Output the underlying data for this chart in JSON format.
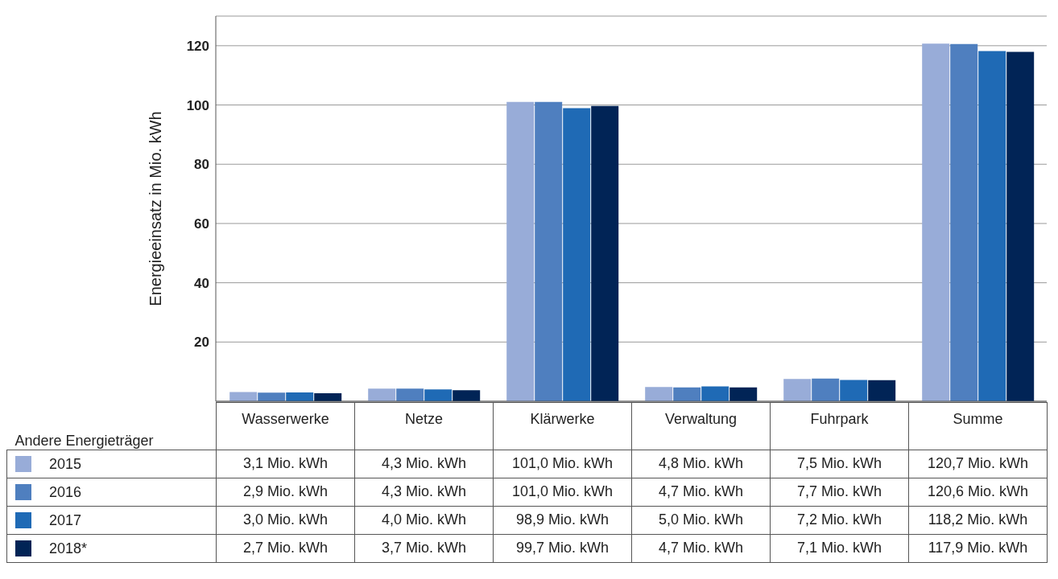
{
  "chart_data": {
    "type": "bar",
    "ylabel": "Energieeinsatz in Mio. kWh",
    "legend_title": "Andere Energieträger",
    "categories": [
      "Wasserwerke",
      "Netze",
      "Klärwerke",
      "Verwaltung",
      "Fuhrpark",
      "Summe"
    ],
    "series": [
      {
        "name": "2015",
        "color": "#98acd8",
        "values": [
          3.1,
          4.3,
          101.0,
          4.8,
          7.5,
          120.7
        ],
        "value_labels": [
          "3,1 Mio. kWh",
          "4,3 Mio. kWh",
          "101,0 Mio. kWh",
          "4,8 Mio. kWh",
          "7,5 Mio. kWh",
          "120,7 Mio. kWh"
        ]
      },
      {
        "name": "2016",
        "color": "#4f7fbf",
        "values": [
          2.9,
          4.3,
          101.0,
          4.7,
          7.7,
          120.6
        ],
        "value_labels": [
          "2,9 Mio. kWh",
          "4,3 Mio. kWh",
          "101,0 Mio. kWh",
          "4,7 Mio. kWh",
          "7,7 Mio. kWh",
          "120,6 Mio. kWh"
        ]
      },
      {
        "name": "2017",
        "color": "#1f6ab5",
        "values": [
          3.0,
          4.0,
          98.9,
          5.0,
          7.2,
          118.2
        ],
        "value_labels": [
          "3,0 Mio. kWh",
          "4,0 Mio. kWh",
          "98,9 Mio. kWh",
          "5,0 Mio. kWh",
          "7,2 Mio. kWh",
          "118,2 Mio. kWh"
        ]
      },
      {
        "name": "2018*",
        "color": "#012456",
        "values": [
          2.7,
          3.7,
          99.7,
          4.7,
          7.1,
          117.9
        ],
        "value_labels": [
          "2,7 Mio. kWh",
          "3,7 Mio. kWh",
          "99,7 Mio. kWh",
          "4,7 Mio. kWh",
          "7,1 Mio. kWh",
          "117,9 Mio. kWh"
        ]
      }
    ],
    "ylim": [
      0,
      130
    ],
    "yticks": [
      {
        "value": 0,
        "label": null
      },
      20,
      40,
      60,
      80,
      100,
      120
    ],
    "grid": "y",
    "legend": "bottom left"
  }
}
